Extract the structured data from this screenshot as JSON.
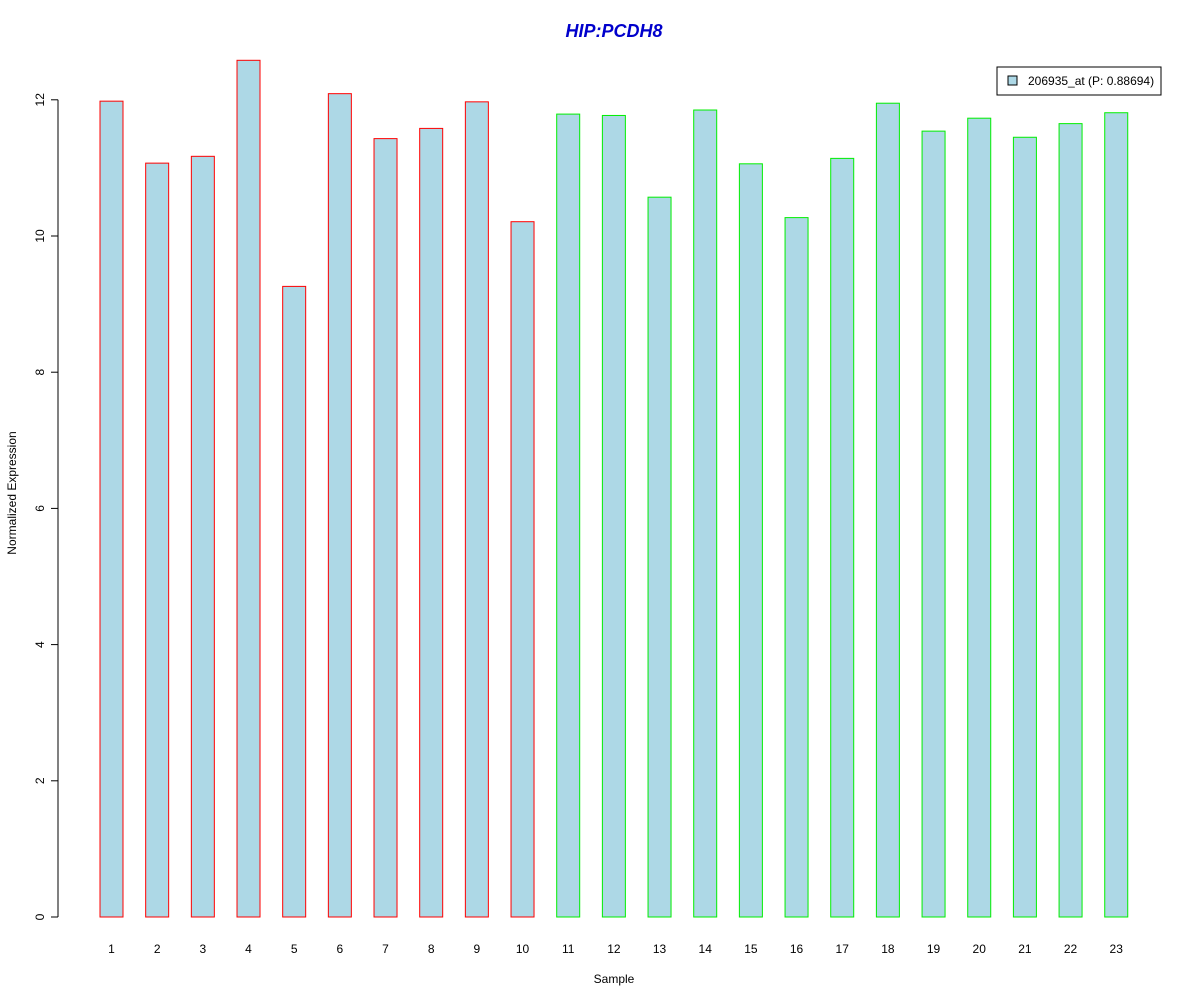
{
  "chart_data": {
    "type": "bar",
    "title": "HIP:PCDH8",
    "xlabel": "Sample",
    "ylabel": "Normalized Expression",
    "categories": [
      "1",
      "2",
      "3",
      "4",
      "5",
      "6",
      "7",
      "8",
      "9",
      "10",
      "11",
      "12",
      "13",
      "14",
      "15",
      "16",
      "17",
      "18",
      "19",
      "20",
      "21",
      "22",
      "23"
    ],
    "series": [
      {
        "name": "206935_at (P: 0.88694)",
        "values": [
          11.98,
          11.07,
          11.17,
          12.58,
          9.26,
          12.09,
          11.43,
          11.58,
          11.97,
          10.21,
          11.79,
          11.77,
          10.57,
          11.85,
          11.06,
          10.27,
          11.14,
          11.95,
          11.54,
          11.73,
          11.45,
          11.65,
          11.81
        ]
      }
    ],
    "groups": [
      1,
      1,
      1,
      1,
      1,
      1,
      1,
      1,
      1,
      1,
      2,
      2,
      2,
      2,
      2,
      2,
      2,
      2,
      2,
      2,
      2,
      2,
      2
    ],
    "yticks": [
      "0",
      "2",
      "4",
      "6",
      "8",
      "10",
      "12"
    ],
    "ylim": [
      0,
      12.6
    ],
    "legend_position": "top-right",
    "grid": false,
    "colors": {
      "bar_fill": "#add8e6",
      "group1_border": "#ff0000",
      "group2_border": "#00ee00",
      "title": "#0000cc",
      "axis": "#000000"
    }
  }
}
